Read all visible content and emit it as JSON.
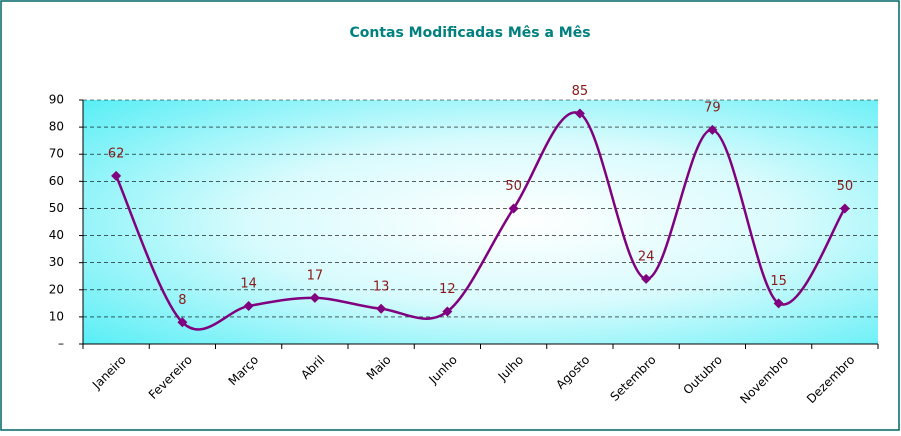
{
  "chart_data": {
    "type": "line",
    "title": "Contas Modificadas Mês a Mês",
    "categories": [
      "Janeiro",
      "Fevereiro",
      "Março",
      "Abril",
      "Maio",
      "Junho",
      "Julho",
      "Agosto",
      "Setembro",
      "Outubro",
      "Novembro",
      "Dezembro"
    ],
    "values": [
      62,
      8,
      14,
      17,
      13,
      12,
      50,
      85,
      24,
      79,
      15,
      50
    ],
    "color": "#800080",
    "label_color": "#8b1a1a",
    "smooth": true,
    "ylim": [
      0,
      90
    ],
    "yticks": [
      {
        "value": 0,
        "label": "–"
      },
      10,
      20,
      30,
      40,
      50,
      60,
      70,
      80,
      90
    ],
    "grid": true
  }
}
